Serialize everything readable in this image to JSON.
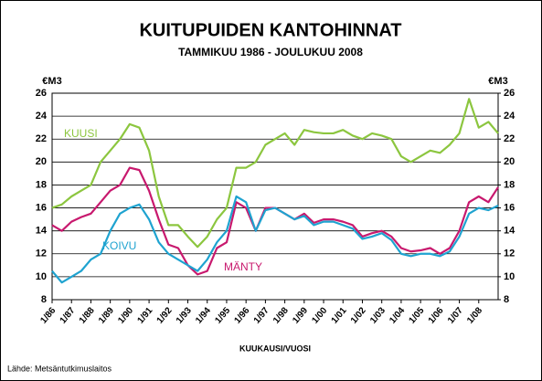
{
  "chart_data": {
    "type": "line",
    "title": "KUITUPUIDEN KANTOHINNAT",
    "subtitle": "TAMMIKUU 1986 - JOULUKUU 2008",
    "y_label": "€M3",
    "y2_label": "€M3",
    "x_label": "KUUKAUSI/VUOSI",
    "source": "Lähde: Metsäntutkimuslaitos",
    "x": [
      1986,
      1986.5,
      1987,
      1987.5,
      1988,
      1988.5,
      1989,
      1989.5,
      1990,
      1990.5,
      1991,
      1991.5,
      1992,
      1992.5,
      1993,
      1993.5,
      1994,
      1994.5,
      1995,
      1995.5,
      1996,
      1996.5,
      1997,
      1997.5,
      1998,
      1998.5,
      1999,
      1999.5,
      2000,
      2000.5,
      2001,
      2001.5,
      2002,
      2002.5,
      2003,
      2003.5,
      2004,
      2004.5,
      2005,
      2005.5,
      2006,
      2006.5,
      2007,
      2007.5,
      2008,
      2008.5,
      2009
    ],
    "series": [
      {
        "name": "KUUSI",
        "color": "#8cc63f",
        "values": [
          16.0,
          16.3,
          17.0,
          17.5,
          18.0,
          20.0,
          21.0,
          22.0,
          23.3,
          23.0,
          21.0,
          17.0,
          14.5,
          14.5,
          13.5,
          12.6,
          13.5,
          15.0,
          16.0,
          19.5,
          19.5,
          20.0,
          21.5,
          22.0,
          22.5,
          21.5,
          22.8,
          22.6,
          22.5,
          22.5,
          22.8,
          22.3,
          22.0,
          22.5,
          22.3,
          22.0,
          20.5,
          20.0,
          20.5,
          21.0,
          20.8,
          21.5,
          22.5,
          25.5,
          23.0,
          23.5,
          22.5
        ]
      },
      {
        "name": "MÄNTY",
        "color": "#c8196e",
        "values": [
          14.5,
          14.0,
          14.8,
          15.2,
          15.5,
          16.5,
          17.5,
          18.0,
          19.5,
          19.3,
          17.5,
          15.0,
          12.8,
          12.5,
          11.0,
          10.2,
          10.5,
          12.5,
          13.0,
          16.5,
          16.0,
          14.0,
          16.0,
          16.0,
          15.5,
          15.0,
          15.5,
          14.7,
          15.0,
          15.0,
          14.8,
          14.5,
          13.5,
          13.8,
          14.0,
          13.5,
          12.5,
          12.2,
          12.3,
          12.5,
          12.0,
          12.5,
          14.0,
          16.5,
          17.0,
          16.5,
          17.8
        ]
      },
      {
        "name": "KOIVU",
        "color": "#1fa3d0",
        "values": [
          10.5,
          9.5,
          10.0,
          10.5,
          11.5,
          12.0,
          14.0,
          15.5,
          16.0,
          16.3,
          15.0,
          13.0,
          12.0,
          11.5,
          11.0,
          10.5,
          11.5,
          13.0,
          14.0,
          17.0,
          16.5,
          14.0,
          15.8,
          16.0,
          15.5,
          15.0,
          15.3,
          14.5,
          14.8,
          14.8,
          14.5,
          14.2,
          13.3,
          13.5,
          13.8,
          13.2,
          12.0,
          11.8,
          12.0,
          12.0,
          11.8,
          12.2,
          13.5,
          15.5,
          16.0,
          15.8,
          16.2
        ]
      }
    ],
    "xlim": [
      1986,
      2009
    ],
    "xticks": [
      {
        "value": 1986,
        "label": "1/86"
      },
      {
        "value": 1987,
        "label": "1/87"
      },
      {
        "value": 1988,
        "label": "1/88"
      },
      {
        "value": 1989,
        "label": "1/89"
      },
      {
        "value": 1990,
        "label": "1/90"
      },
      {
        "value": 1991,
        "label": "1/91"
      },
      {
        "value": 1992,
        "label": "1/92"
      },
      {
        "value": 1993,
        "label": "1/93"
      },
      {
        "value": 1994,
        "label": "1/94"
      },
      {
        "value": 1995,
        "label": "1/95"
      },
      {
        "value": 1996,
        "label": "1/96"
      },
      {
        "value": 1997,
        "label": "1/97"
      },
      {
        "value": 1998,
        "label": "1/98"
      },
      {
        "value": 1999,
        "label": "1/99"
      },
      {
        "value": 2000,
        "label": "1/00"
      },
      {
        "value": 2001,
        "label": "1/01"
      },
      {
        "value": 2002,
        "label": "1/02"
      },
      {
        "value": 2003,
        "label": "1/03"
      },
      {
        "value": 2004,
        "label": "1/04"
      },
      {
        "value": 2005,
        "label": "1/05"
      },
      {
        "value": 2006,
        "label": "1/06"
      },
      {
        "value": 2007,
        "label": "1/07"
      },
      {
        "value": 2008,
        "label": "1/08"
      }
    ],
    "ylim": [
      8,
      26
    ],
    "yticks": [
      8,
      10,
      12,
      14,
      16,
      18,
      20,
      22,
      24,
      26
    ],
    "y2lim": [
      8,
      26
    ],
    "y2ticks": [
      8,
      10,
      12,
      14,
      16,
      18,
      20,
      22,
      24,
      26
    ],
    "grid": true
  }
}
